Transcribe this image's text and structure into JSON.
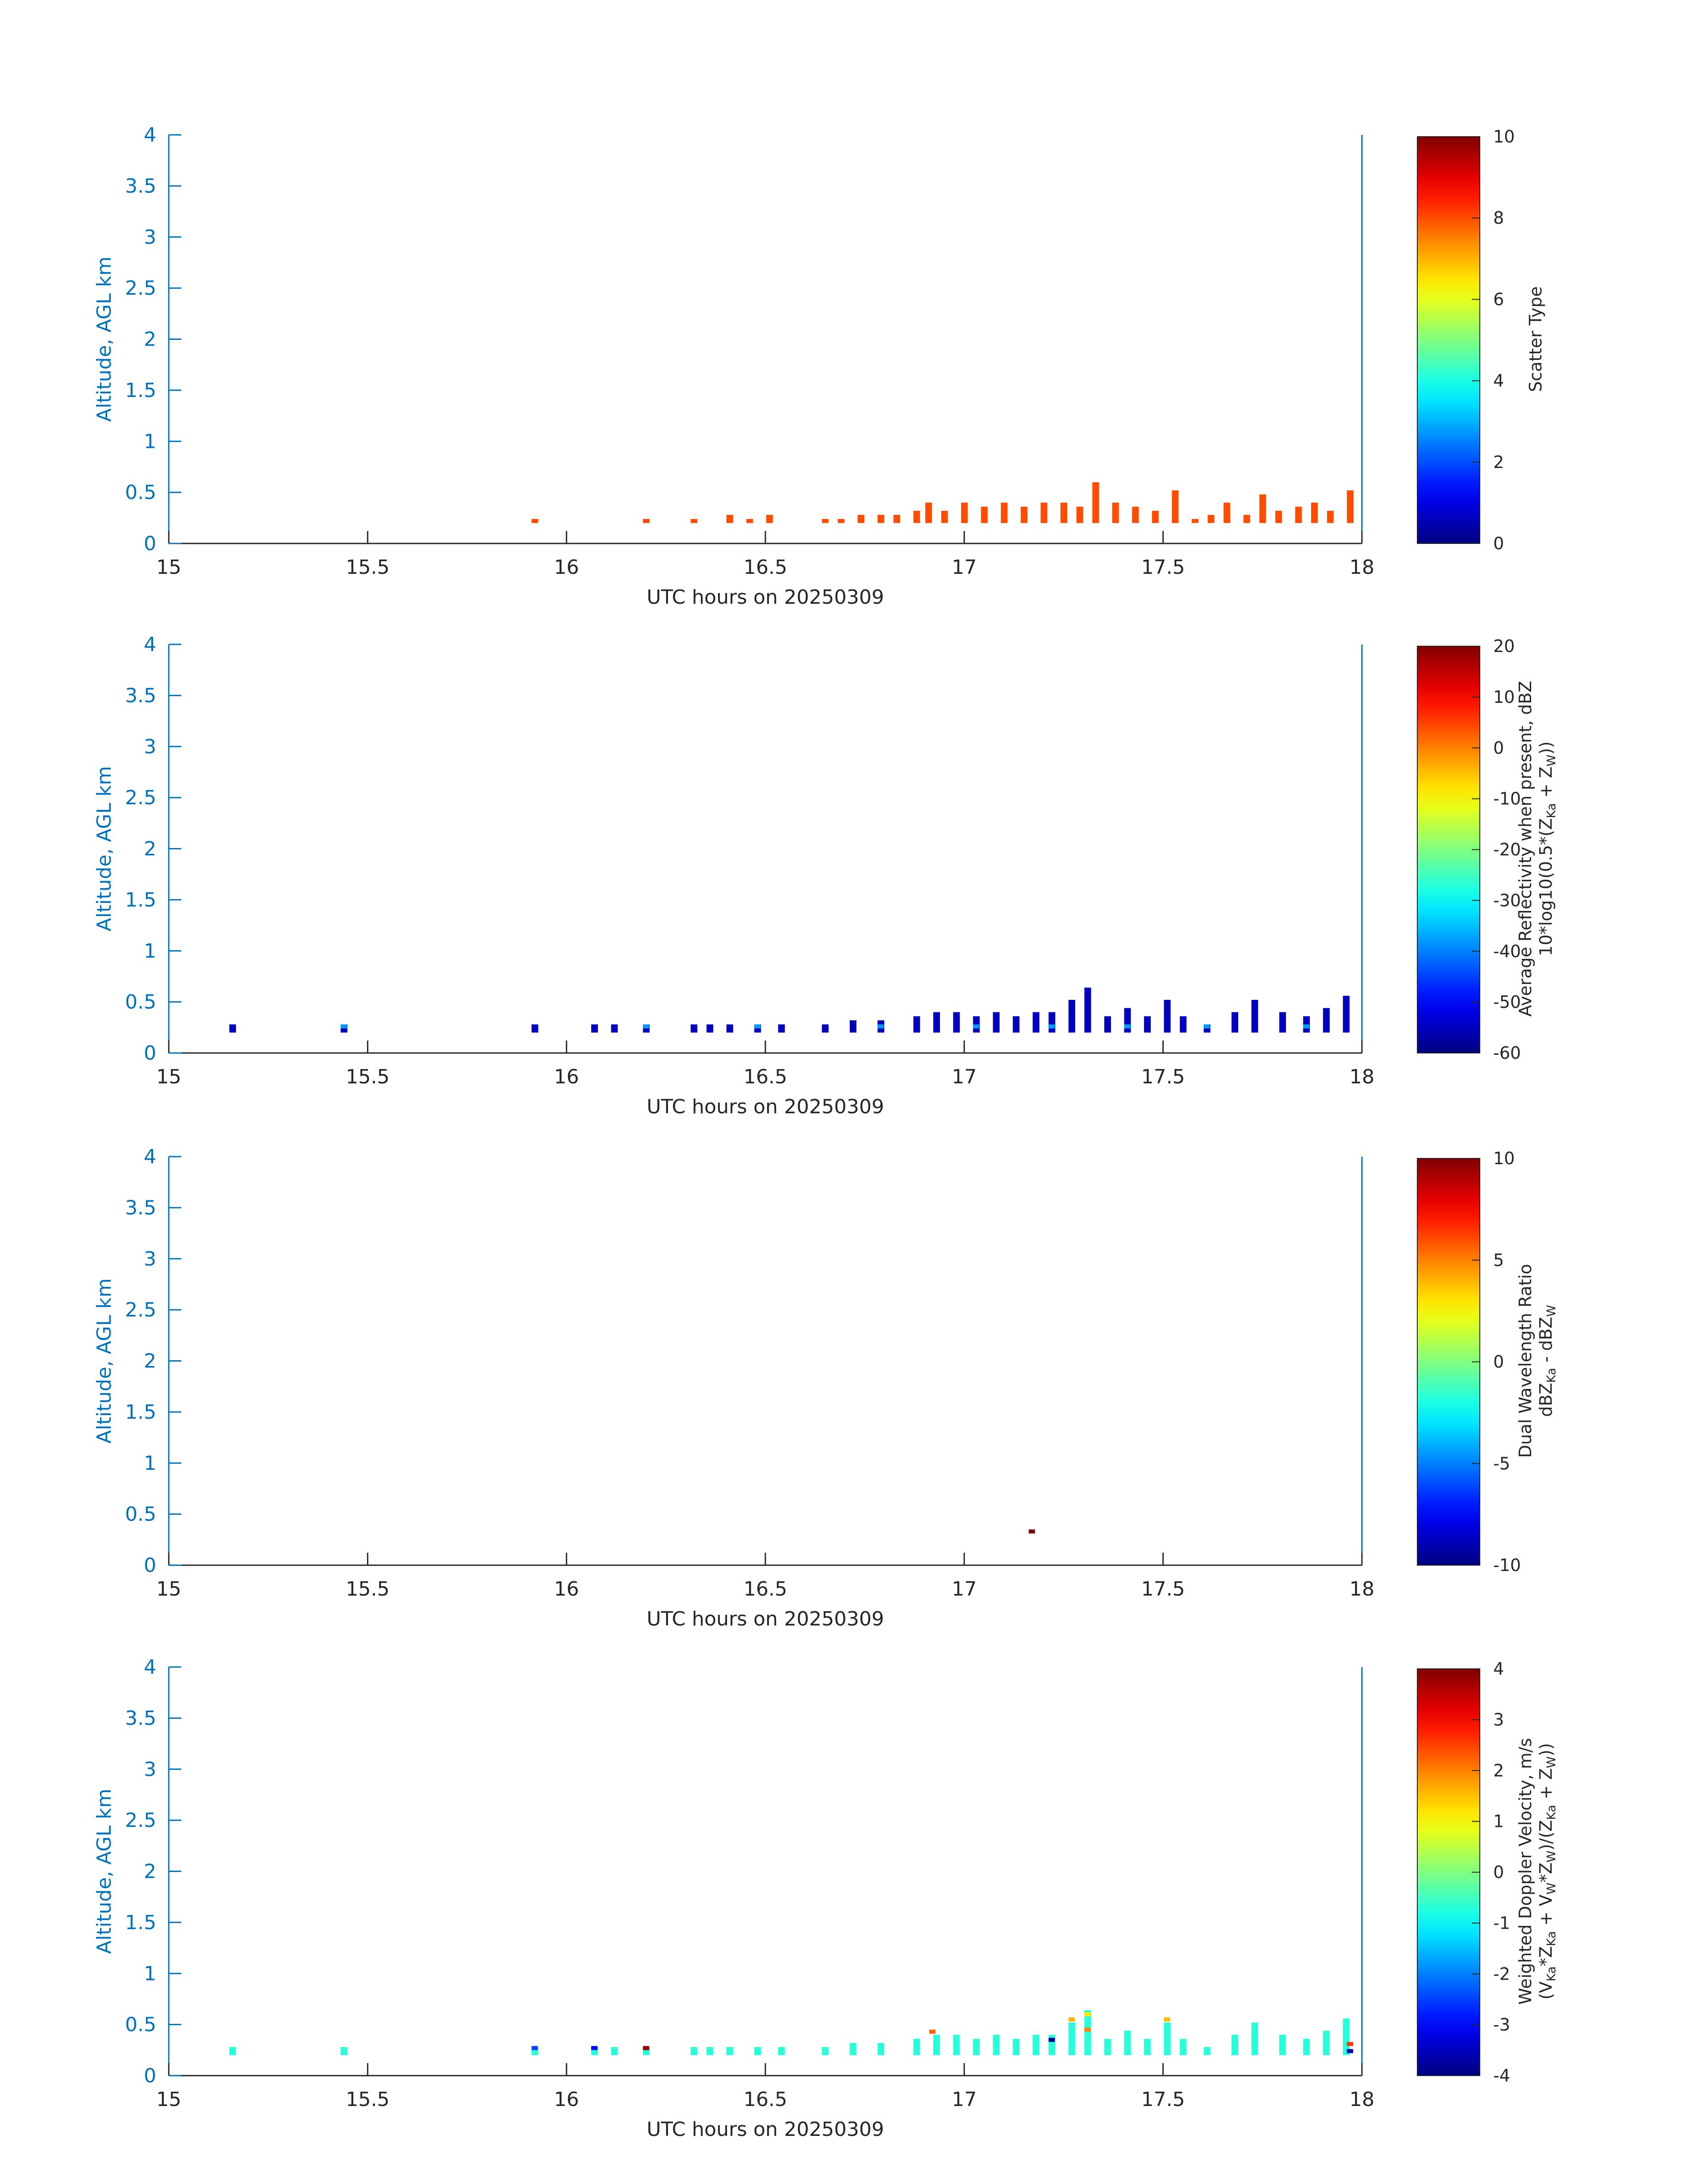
{
  "chart_data": [
    {
      "type": "heatmap",
      "xlabel": "UTC hours on 20250309",
      "ylabel": "Altitude, AGL km",
      "xlim": [
        15,
        18
      ],
      "ylim": [
        0,
        4
      ],
      "x_ticks": [
        "15",
        "15.5",
        "16",
        "16.5",
        "17",
        "17.5",
        "18"
      ],
      "y_ticks": [
        "0",
        "0.5",
        "1",
        "1.5",
        "2",
        "2.5",
        "3",
        "3.5",
        "4"
      ],
      "colormap": "jet",
      "colorbar": {
        "label_lines": [
          [
            "Scatter Type"
          ]
        ],
        "range": [
          0,
          10
        ],
        "ticks": [
          "0",
          "2",
          "4",
          "6",
          "8",
          "10"
        ]
      },
      "cell_value": 8,
      "columns": [
        {
          "x": 15.92,
          "top": 0.24
        },
        {
          "x": 16.2,
          "top": 0.24
        },
        {
          "x": 16.32,
          "top": 0.24
        },
        {
          "x": 16.41,
          "top": 0.28
        },
        {
          "x": 16.46,
          "top": 0.24
        },
        {
          "x": 16.51,
          "top": 0.28
        },
        {
          "x": 16.65,
          "top": 0.24
        },
        {
          "x": 16.69,
          "top": 0.24
        },
        {
          "x": 16.74,
          "top": 0.28
        },
        {
          "x": 16.79,
          "top": 0.28
        },
        {
          "x": 16.83,
          "top": 0.28
        },
        {
          "x": 16.88,
          "top": 0.32
        },
        {
          "x": 16.91,
          "top": 0.4
        },
        {
          "x": 16.95,
          "top": 0.32
        },
        {
          "x": 17.0,
          "top": 0.4
        },
        {
          "x": 17.05,
          "top": 0.36
        },
        {
          "x": 17.1,
          "top": 0.4
        },
        {
          "x": 17.15,
          "top": 0.36
        },
        {
          "x": 17.2,
          "top": 0.4
        },
        {
          "x": 17.25,
          "top": 0.4
        },
        {
          "x": 17.29,
          "top": 0.36
        },
        {
          "x": 17.33,
          "top": 0.6
        },
        {
          "x": 17.38,
          "top": 0.4
        },
        {
          "x": 17.43,
          "top": 0.36
        },
        {
          "x": 17.48,
          "top": 0.32
        },
        {
          "x": 17.53,
          "top": 0.52
        },
        {
          "x": 17.58,
          "top": 0.24
        },
        {
          "x": 17.62,
          "top": 0.28
        },
        {
          "x": 17.66,
          "top": 0.4
        },
        {
          "x": 17.71,
          "top": 0.28
        },
        {
          "x": 17.75,
          "top": 0.48
        },
        {
          "x": 17.79,
          "top": 0.32
        },
        {
          "x": 17.84,
          "top": 0.36
        },
        {
          "x": 17.88,
          "top": 0.4
        },
        {
          "x": 17.92,
          "top": 0.32
        },
        {
          "x": 17.97,
          "top": 0.52
        }
      ]
    },
    {
      "type": "heatmap",
      "xlabel": "UTC hours on 20250309",
      "ylabel": "Altitude, AGL km",
      "xlim": [
        15,
        18
      ],
      "ylim": [
        0,
        4
      ],
      "x_ticks": [
        "15",
        "15.5",
        "16",
        "16.5",
        "17",
        "17.5",
        "18"
      ],
      "y_ticks": [
        "0",
        "0.5",
        "1",
        "1.5",
        "2",
        "2.5",
        "3",
        "3.5",
        "4"
      ],
      "colormap": "jet",
      "colorbar": {
        "label_lines": [
          [
            "Average Reflectivity when present, dBZ"
          ],
          [
            "10*log10(0.5*(Z",
            "Ka",
            " + Z",
            "W",
            "))"
          ]
        ],
        "range": [
          -60,
          20
        ],
        "ticks": [
          "-60",
          "-50",
          "-40",
          "-30",
          "-20",
          "-10",
          "0",
          "10",
          "20"
        ]
      },
      "cell_value": -55,
      "highlight_value": -38,
      "columns": [
        {
          "x": 15.16,
          "top": 0.28
        },
        {
          "x": 15.44,
          "top": 0.28
        },
        {
          "x": 15.92,
          "top": 0.28
        },
        {
          "x": 16.07,
          "top": 0.28
        },
        {
          "x": 16.12,
          "top": 0.28
        },
        {
          "x": 16.2,
          "top": 0.28
        },
        {
          "x": 16.32,
          "top": 0.28
        },
        {
          "x": 16.36,
          "top": 0.28
        },
        {
          "x": 16.41,
          "top": 0.28
        },
        {
          "x": 16.48,
          "top": 0.28
        },
        {
          "x": 16.54,
          "top": 0.28
        },
        {
          "x": 16.65,
          "top": 0.28
        },
        {
          "x": 16.72,
          "top": 0.32
        },
        {
          "x": 16.79,
          "top": 0.32
        },
        {
          "x": 16.88,
          "top": 0.36
        },
        {
          "x": 16.93,
          "top": 0.4
        },
        {
          "x": 16.98,
          "top": 0.4
        },
        {
          "x": 17.03,
          "top": 0.36
        },
        {
          "x": 17.08,
          "top": 0.4
        },
        {
          "x": 17.13,
          "top": 0.36
        },
        {
          "x": 17.18,
          "top": 0.4
        },
        {
          "x": 17.22,
          "top": 0.4
        },
        {
          "x": 17.27,
          "top": 0.52
        },
        {
          "x": 17.31,
          "top": 0.64
        },
        {
          "x": 17.36,
          "top": 0.36
        },
        {
          "x": 17.41,
          "top": 0.44
        },
        {
          "x": 17.46,
          "top": 0.36
        },
        {
          "x": 17.51,
          "top": 0.52
        },
        {
          "x": 17.55,
          "top": 0.36
        },
        {
          "x": 17.61,
          "top": 0.28
        },
        {
          "x": 17.68,
          "top": 0.4
        },
        {
          "x": 17.73,
          "top": 0.52
        },
        {
          "x": 17.8,
          "top": 0.4
        },
        {
          "x": 17.86,
          "top": 0.36
        },
        {
          "x": 17.91,
          "top": 0.44
        },
        {
          "x": 17.96,
          "top": 0.56
        }
      ]
    },
    {
      "type": "heatmap",
      "xlabel": "UTC hours on 20250309",
      "ylabel": "Altitude, AGL km",
      "xlim": [
        15,
        18
      ],
      "ylim": [
        0,
        4
      ],
      "x_ticks": [
        "15",
        "15.5",
        "16",
        "16.5",
        "17",
        "17.5",
        "18"
      ],
      "y_ticks": [
        "0",
        "0.5",
        "1",
        "1.5",
        "2",
        "2.5",
        "3",
        "3.5",
        "4"
      ],
      "colormap": "jet",
      "colorbar": {
        "label_lines": [
          [
            "Dual Wavelength Ratio"
          ],
          [
            "dBZ",
            "Ka",
            " - dBZ",
            "W",
            ""
          ]
        ],
        "range": [
          -10,
          10
        ],
        "ticks": [
          "-10",
          "-5",
          "0",
          "5",
          "10"
        ]
      },
      "points": [
        {
          "x": 17.17,
          "y": 0.33,
          "value": 10
        }
      ]
    },
    {
      "type": "heatmap",
      "xlabel": "UTC hours on 20250309",
      "ylabel": "Altitude, AGL km",
      "xlim": [
        15,
        18
      ],
      "ylim": [
        0,
        4
      ],
      "x_ticks": [
        "15",
        "15.5",
        "16",
        "16.5",
        "17",
        "17.5",
        "18"
      ],
      "y_ticks": [
        "0",
        "0.5",
        "1",
        "1.5",
        "2",
        "2.5",
        "3",
        "3.5",
        "4"
      ],
      "colormap": "jet",
      "colorbar": {
        "label_lines": [
          [
            "Weighted Doppler Velocity, m/s"
          ],
          [
            "(V",
            "Ka",
            "*Z",
            "Ka",
            " + V",
            "W",
            "*Z",
            "W",
            ")/(Z",
            "Ka",
            " + Z",
            "W",
            "))"
          ]
        ],
        "range": [
          -4,
          4
        ],
        "ticks": [
          "-4",
          "-3",
          "-2",
          "-1",
          "0",
          "1",
          "2",
          "3",
          "4"
        ]
      },
      "cell_value": -0.7,
      "columns": [
        {
          "x": 15.16,
          "top": 0.28
        },
        {
          "x": 15.44,
          "top": 0.28
        },
        {
          "x": 15.92,
          "top": 0.28
        },
        {
          "x": 16.07,
          "top": 0.28
        },
        {
          "x": 16.12,
          "top": 0.28
        },
        {
          "x": 16.2,
          "top": 0.28
        },
        {
          "x": 16.32,
          "top": 0.28
        },
        {
          "x": 16.36,
          "top": 0.28
        },
        {
          "x": 16.41,
          "top": 0.28
        },
        {
          "x": 16.48,
          "top": 0.28
        },
        {
          "x": 16.54,
          "top": 0.28
        },
        {
          "x": 16.65,
          "top": 0.28
        },
        {
          "x": 16.72,
          "top": 0.32
        },
        {
          "x": 16.79,
          "top": 0.32
        },
        {
          "x": 16.88,
          "top": 0.36
        },
        {
          "x": 16.93,
          "top": 0.4
        },
        {
          "x": 16.98,
          "top": 0.4
        },
        {
          "x": 17.03,
          "top": 0.36
        },
        {
          "x": 17.08,
          "top": 0.4
        },
        {
          "x": 17.13,
          "top": 0.36
        },
        {
          "x": 17.18,
          "top": 0.4
        },
        {
          "x": 17.22,
          "top": 0.4
        },
        {
          "x": 17.27,
          "top": 0.52
        },
        {
          "x": 17.31,
          "top": 0.64
        },
        {
          "x": 17.36,
          "top": 0.36
        },
        {
          "x": 17.41,
          "top": 0.44
        },
        {
          "x": 17.46,
          "top": 0.36
        },
        {
          "x": 17.51,
          "top": 0.52
        },
        {
          "x": 17.55,
          "top": 0.36
        },
        {
          "x": 17.61,
          "top": 0.28
        },
        {
          "x": 17.68,
          "top": 0.4
        },
        {
          "x": 17.73,
          "top": 0.52
        },
        {
          "x": 17.8,
          "top": 0.4
        },
        {
          "x": 17.86,
          "top": 0.36
        },
        {
          "x": 17.91,
          "top": 0.44
        },
        {
          "x": 17.96,
          "top": 0.56
        }
      ],
      "points": [
        {
          "x": 15.92,
          "y": 0.27,
          "value": -2.5
        },
        {
          "x": 16.07,
          "y": 0.27,
          "value": -3.0
        },
        {
          "x": 16.2,
          "y": 0.27,
          "value": 3.8
        },
        {
          "x": 16.92,
          "y": 0.43,
          "value": 2.2
        },
        {
          "x": 17.22,
          "y": 0.35,
          "value": -3.8
        },
        {
          "x": 17.27,
          "y": 0.55,
          "value": 1.6
        },
        {
          "x": 17.31,
          "y": 0.6,
          "value": 1.2
        },
        {
          "x": 17.31,
          "y": 0.45,
          "value": 2.0
        },
        {
          "x": 17.51,
          "y": 0.55,
          "value": 1.5
        },
        {
          "x": 17.97,
          "y": 0.31,
          "value": 2.6
        },
        {
          "x": 17.97,
          "y": 0.24,
          "value": -3.6
        }
      ]
    }
  ]
}
